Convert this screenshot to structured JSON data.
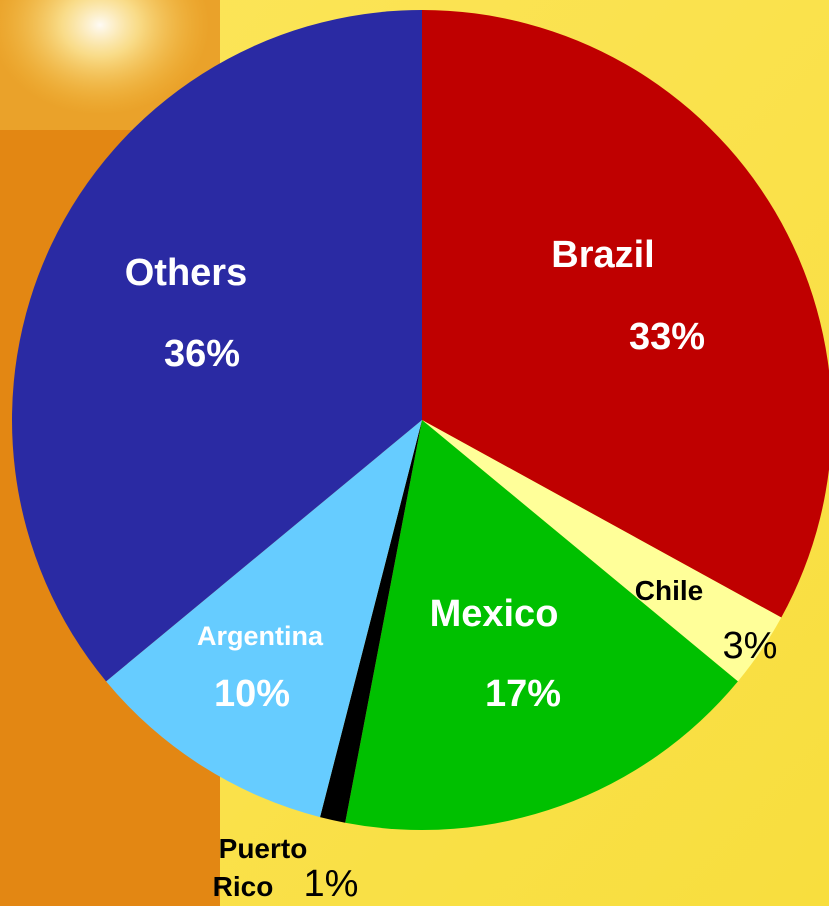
{
  "chart_data": {
    "type": "pie",
    "slices": [
      {
        "label": "Brazil",
        "value": 33,
        "value_label": "33%",
        "color": "#bf0000"
      },
      {
        "label": "Chile",
        "value": 3,
        "value_label": "3%",
        "color": "#ffff99"
      },
      {
        "label": "Mexico",
        "value": 17,
        "value_label": "17%",
        "color": "#00c000"
      },
      {
        "label": "Puerto Rico",
        "value": 1,
        "value_label": "1%",
        "color": "#000000"
      },
      {
        "label": "Argentina",
        "value": 10,
        "value_label": "10%",
        "color": "#66ccff"
      },
      {
        "label": "Others",
        "value": 36,
        "value_label": "36%",
        "color": "#2a2aa3"
      }
    ],
    "title": "",
    "legend": "none"
  },
  "colors": {
    "background_left": "#e38713",
    "background_right": "#fbe345"
  }
}
